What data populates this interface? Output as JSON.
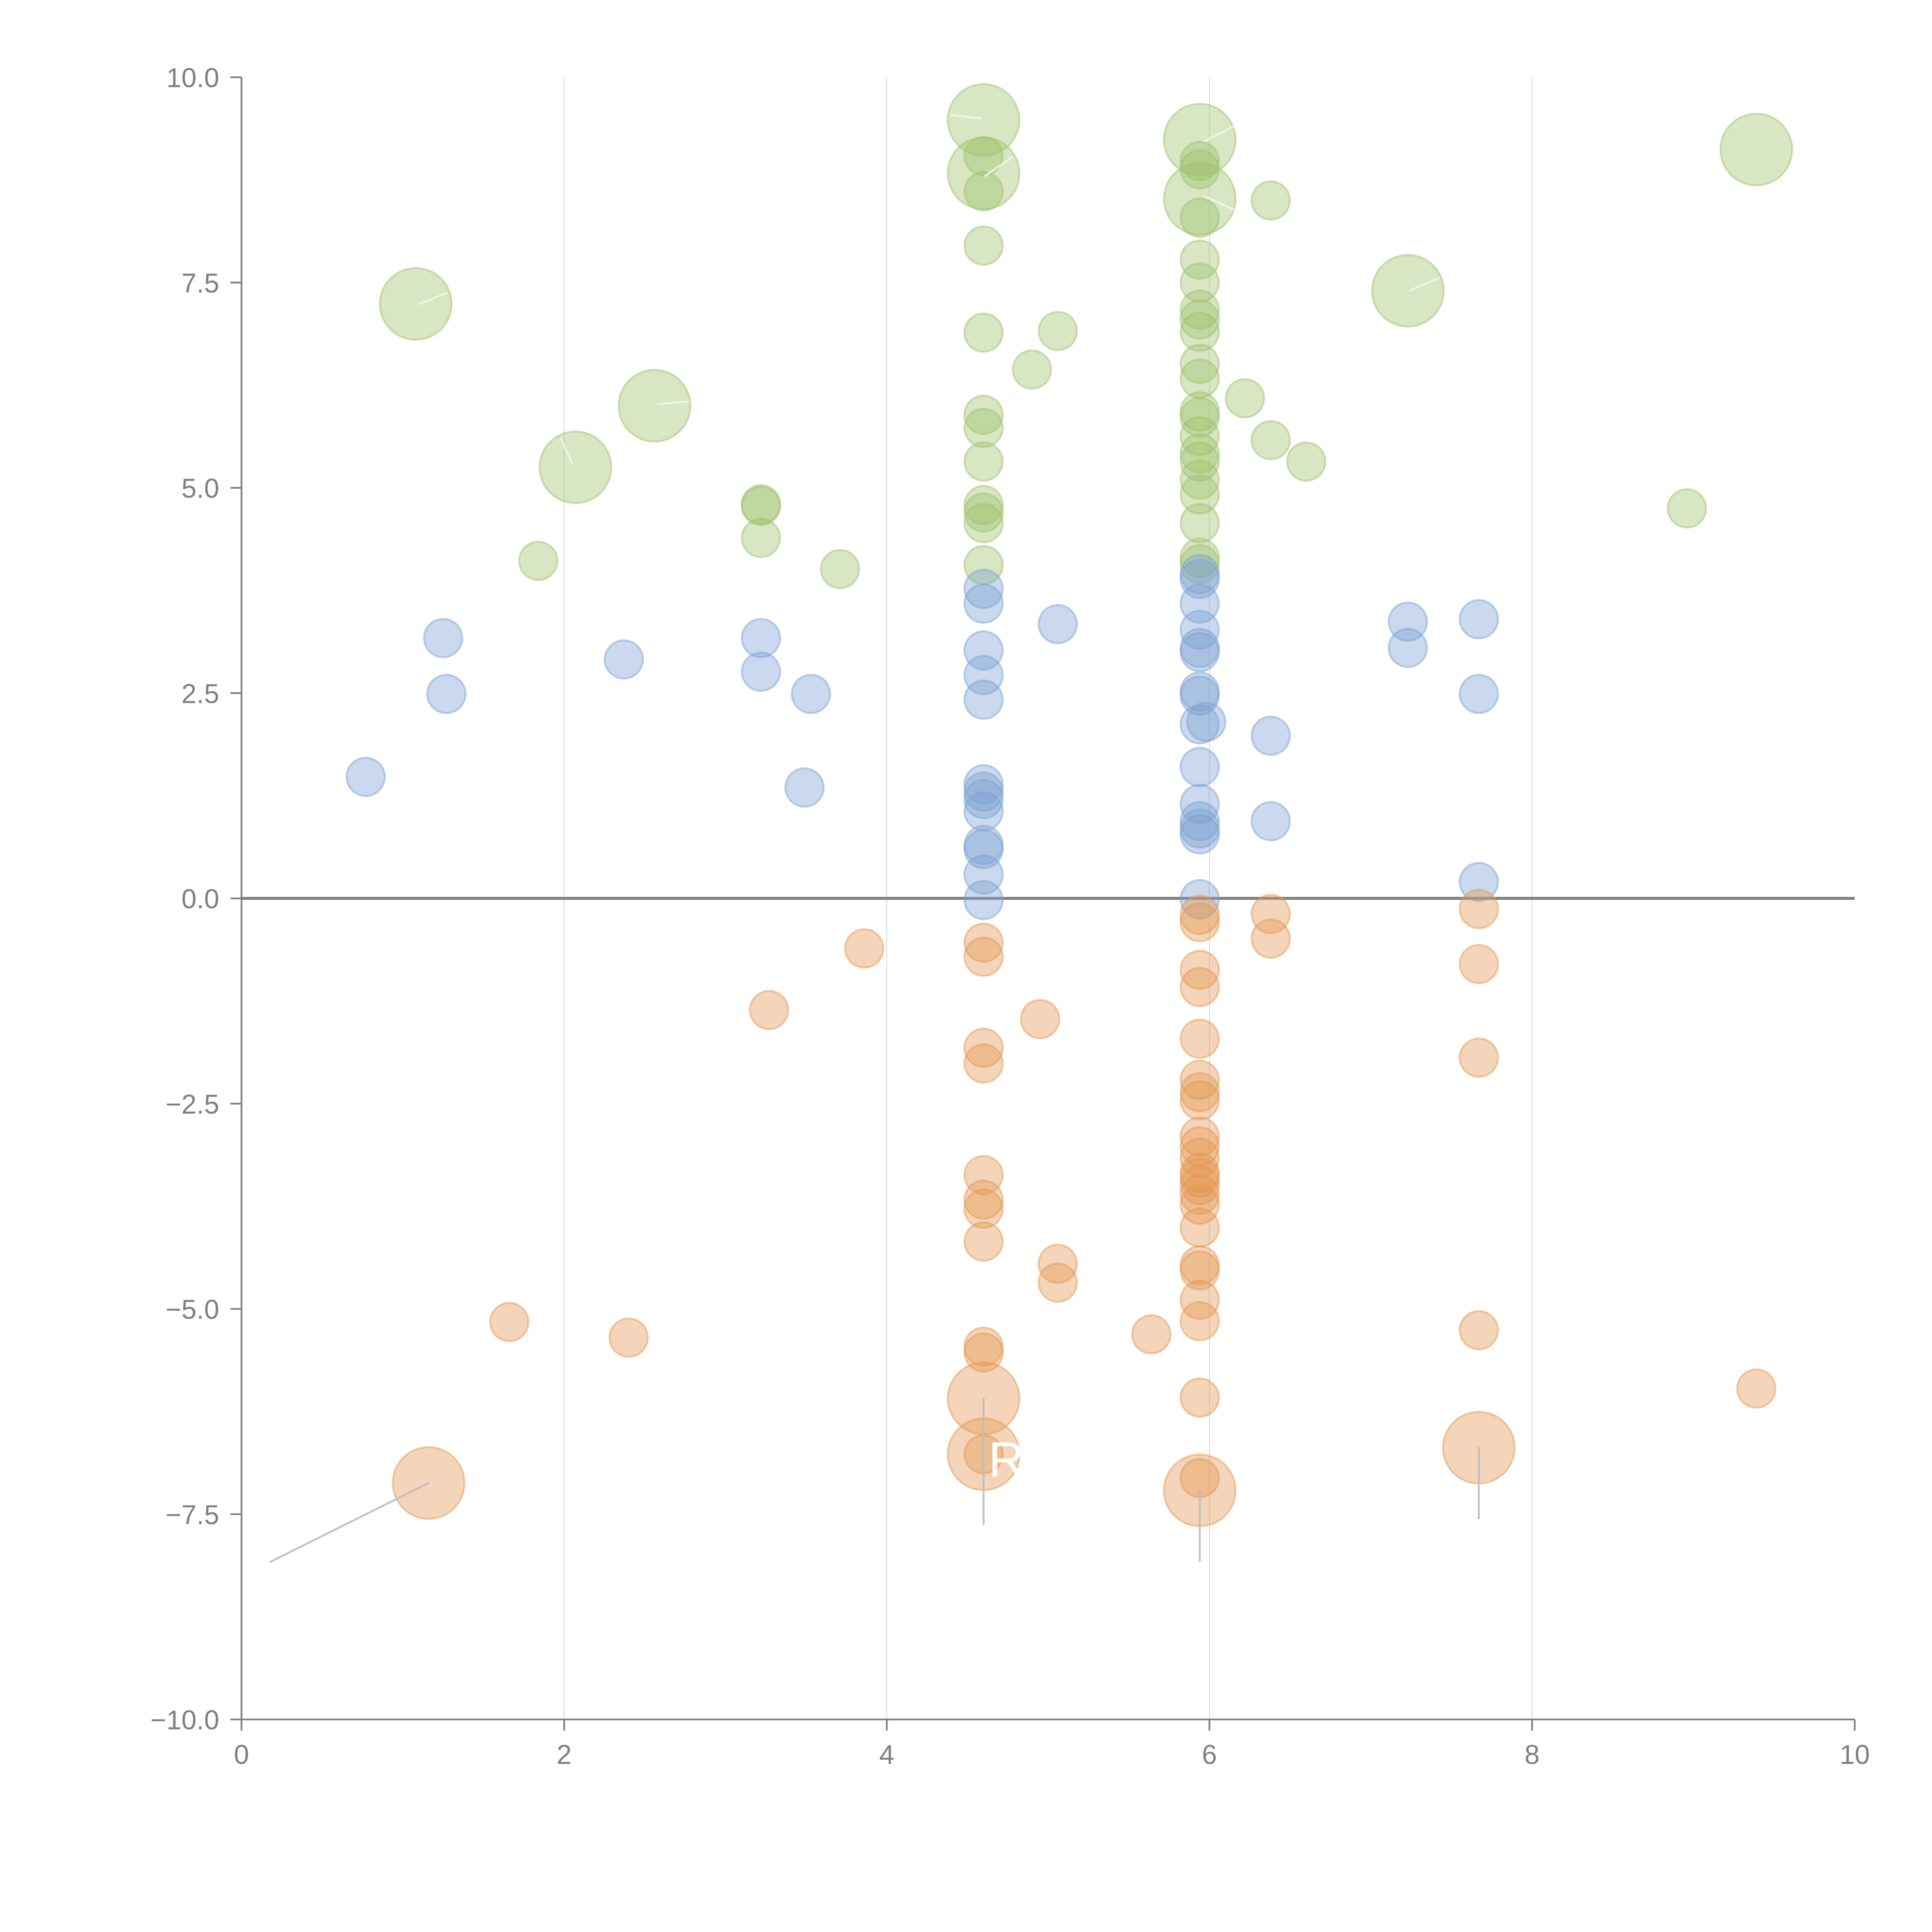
{
  "chart_data": {
    "type": "scatter",
    "subtype": "bubble",
    "title": "",
    "xlabel": "",
    "ylabel": "",
    "xlim": [
      0,
      10
    ],
    "ylim": [
      -10,
      10
    ],
    "x_ticks": [
      "0",
      "2",
      "4",
      "6",
      "8",
      "10"
    ],
    "y_ticks": [
      "−10.0",
      "−7.5",
      "−5.0",
      "−2.5",
      "0.0",
      "2.5",
      "5.0",
      "7.5",
      "10.0"
    ],
    "x_tick_values": [
      0,
      2,
      4,
      6,
      8,
      10
    ],
    "y_tick_values": [
      -10,
      -7.5,
      -5,
      -2.5,
      0,
      2.5,
      5,
      7.5,
      10
    ],
    "vertical_grid": true,
    "horizontal_grid": false,
    "reference_line_y": 0,
    "legend": "none",
    "size_note": "relative bubble size: 1 = small, 3.5 = large",
    "series": [
      {
        "name": "green",
        "color": "#9dc06a",
        "points": [
          [
            1.08,
            7.24,
            3.5
          ],
          [
            2.07,
            5.25,
            3.5
          ],
          [
            2.56,
            6.0,
            3.5
          ],
          [
            1.84,
            4.11,
            1
          ],
          [
            3.22,
            4.8,
            1
          ],
          [
            3.22,
            4.78,
            1
          ],
          [
            3.22,
            4.39,
            1
          ],
          [
            3.71,
            4.01,
            1
          ],
          [
            4.6,
            9.48,
            3.5
          ],
          [
            4.6,
            8.83,
            3.5
          ],
          [
            4.6,
            9.04,
            1
          ],
          [
            4.6,
            8.61,
            1
          ],
          [
            4.6,
            7.95,
            1
          ],
          [
            4.6,
            6.89,
            1
          ],
          [
            4.6,
            5.89,
            1
          ],
          [
            4.6,
            5.73,
            1
          ],
          [
            4.6,
            5.32,
            1
          ],
          [
            4.6,
            4.79,
            1
          ],
          [
            4.6,
            4.7,
            1
          ],
          [
            4.6,
            4.57,
            1
          ],
          [
            4.6,
            4.06,
            1
          ],
          [
            5.06,
            6.91,
            1
          ],
          [
            4.9,
            6.44,
            1
          ],
          [
            5.94,
            9.24,
            3.5
          ],
          [
            5.94,
            8.52,
            3.5
          ],
          [
            5.94,
            8.98,
            1
          ],
          [
            5.94,
            8.88,
            1
          ],
          [
            5.94,
            8.29,
            1
          ],
          [
            5.94,
            7.78,
            1
          ],
          [
            5.94,
            7.5,
            1
          ],
          [
            5.94,
            7.17,
            1
          ],
          [
            5.94,
            7.05,
            1
          ],
          [
            5.94,
            6.9,
            1
          ],
          [
            5.94,
            6.51,
            1
          ],
          [
            5.94,
            6.33,
            1
          ],
          [
            5.94,
            5.93,
            1
          ],
          [
            5.94,
            5.86,
            1
          ],
          [
            5.94,
            5.63,
            1
          ],
          [
            5.94,
            5.42,
            1
          ],
          [
            5.94,
            5.32,
            1
          ],
          [
            5.94,
            5.1,
            1
          ],
          [
            5.94,
            4.92,
            1
          ],
          [
            5.94,
            4.57,
            1
          ],
          [
            5.94,
            4.15,
            1
          ],
          [
            5.94,
            4.07,
            1
          ],
          [
            6.38,
            8.5,
            1
          ],
          [
            6.22,
            6.09,
            1
          ],
          [
            6.38,
            5.58,
            1
          ],
          [
            6.6,
            5.32,
            1
          ],
          [
            7.23,
            7.4,
            3.5
          ],
          [
            9.39,
            9.12,
            3.5
          ],
          [
            8.96,
            4.75,
            1
          ]
        ]
      },
      {
        "name": "blue",
        "color": "#7aa0d2",
        "points": [
          [
            0.77,
            1.48,
            1
          ],
          [
            1.25,
            3.17,
            1
          ],
          [
            1.27,
            2.49,
            1
          ],
          [
            2.37,
            2.91,
            1
          ],
          [
            3.22,
            3.17,
            1
          ],
          [
            3.22,
            2.76,
            1
          ],
          [
            3.53,
            2.49,
            1
          ],
          [
            3.49,
            1.35,
            1
          ],
          [
            4.6,
            3.77,
            1
          ],
          [
            4.6,
            3.59,
            1
          ],
          [
            4.6,
            3.02,
            1
          ],
          [
            4.6,
            2.72,
            1
          ],
          [
            4.6,
            2.42,
            1
          ],
          [
            4.6,
            1.39,
            1
          ],
          [
            4.6,
            1.3,
            1
          ],
          [
            4.6,
            1.21,
            1
          ],
          [
            4.6,
            1.06,
            1
          ],
          [
            4.6,
            0.65,
            1
          ],
          [
            4.6,
            0.6,
            1
          ],
          [
            4.6,
            0.29,
            1
          ],
          [
            4.6,
            -0.02,
            1
          ],
          [
            5.06,
            3.34,
            1
          ],
          [
            5.94,
            3.95,
            1
          ],
          [
            5.94,
            3.89,
            1
          ],
          [
            5.94,
            3.59,
            1
          ],
          [
            5.94,
            3.27,
            1
          ],
          [
            5.94,
            3.05,
            1
          ],
          [
            5.94,
            3.0,
            1
          ],
          [
            5.94,
            2.52,
            1
          ],
          [
            5.94,
            2.47,
            1
          ],
          [
            5.94,
            2.12,
            1
          ],
          [
            5.98,
            2.15,
            1
          ],
          [
            5.94,
            1.6,
            1
          ],
          [
            5.94,
            1.15,
            1
          ],
          [
            5.94,
            0.94,
            1
          ],
          [
            5.94,
            0.85,
            1
          ],
          [
            5.94,
            0.78,
            1
          ],
          [
            5.94,
            -0.01,
            1
          ],
          [
            6.38,
            1.98,
            1
          ],
          [
            6.38,
            0.94,
            1
          ],
          [
            7.23,
            3.37,
            1
          ],
          [
            7.23,
            3.05,
            1
          ],
          [
            7.67,
            3.4,
            1
          ],
          [
            7.67,
            2.49,
            1
          ],
          [
            7.67,
            0.2,
            1
          ]
        ]
      },
      {
        "name": "orange",
        "color": "#e39650",
        "points": [
          [
            1.66,
            -5.16,
            1
          ],
          [
            2.4,
            -5.35,
            1
          ],
          [
            3.27,
            -1.36,
            1
          ],
          [
            3.86,
            -0.61,
            1
          ],
          [
            4.95,
            -1.47,
            1
          ],
          [
            1.16,
            -7.12,
            3.5
          ],
          [
            4.6,
            -0.54,
            1
          ],
          [
            4.6,
            -0.71,
            1
          ],
          [
            4.6,
            -1.82,
            1
          ],
          [
            4.6,
            -2.01,
            1
          ],
          [
            4.6,
            -3.37,
            1
          ],
          [
            4.6,
            -3.67,
            1
          ],
          [
            4.6,
            -3.78,
            1
          ],
          [
            4.6,
            -4.18,
            1
          ],
          [
            4.6,
            -5.46,
            1
          ],
          [
            4.6,
            -5.53,
            1
          ],
          [
            4.6,
            -6.09,
            3.5
          ],
          [
            4.6,
            -6.77,
            3.5
          ],
          [
            4.6,
            -6.77,
            1
          ],
          [
            5.06,
            -4.45,
            1
          ],
          [
            5.06,
            -4.68,
            1
          ],
          [
            5.64,
            -5.31,
            1
          ],
          [
            5.94,
            -0.2,
            1
          ],
          [
            5.94,
            -0.29,
            1
          ],
          [
            5.94,
            -0.87,
            1
          ],
          [
            5.94,
            -1.08,
            1
          ],
          [
            5.94,
            -1.71,
            1
          ],
          [
            5.94,
            -2.21,
            1
          ],
          [
            5.94,
            -2.36,
            1
          ],
          [
            5.94,
            -2.46,
            1
          ],
          [
            5.94,
            -2.9,
            1
          ],
          [
            5.94,
            -3.02,
            1
          ],
          [
            5.94,
            -3.16,
            1
          ],
          [
            5.94,
            -3.34,
            1
          ],
          [
            5.94,
            -3.4,
            1
          ],
          [
            5.94,
            -3.49,
            1
          ],
          [
            5.94,
            -3.61,
            1
          ],
          [
            5.94,
            -3.73,
            1
          ],
          [
            5.94,
            -4.01,
            1
          ],
          [
            5.94,
            -4.47,
            1
          ],
          [
            5.94,
            -4.53,
            1
          ],
          [
            5.94,
            -4.89,
            1
          ],
          [
            5.94,
            -5.15,
            1
          ],
          [
            5.94,
            -6.08,
            1
          ],
          [
            5.94,
            -7.06,
            1
          ],
          [
            5.94,
            -7.21,
            3.5
          ],
          [
            6.38,
            -0.19,
            1
          ],
          [
            6.38,
            -0.49,
            1
          ],
          [
            7.67,
            -0.13,
            1
          ],
          [
            7.67,
            -0.8,
            1
          ],
          [
            7.67,
            -1.94,
            1
          ],
          [
            7.67,
            -5.26,
            1
          ],
          [
            7.67,
            -6.69,
            3.5
          ],
          [
            9.39,
            -5.97,
            1
          ]
        ]
      }
    ],
    "leader_lines": [
      {
        "from": [
          1.16,
          -7.12
        ],
        "to": [
          0.18,
          -8.08
        ],
        "color": "#bdbdbd"
      },
      {
        "from": [
          4.6,
          -6.09
        ],
        "to": [
          4.6,
          -7.62
        ],
        "color": "#bdbdbd"
      },
      {
        "from": [
          5.94,
          -7.21
        ],
        "to": [
          5.94,
          -8.07
        ],
        "color": "#bdbdbd"
      },
      {
        "from": [
          7.67,
          -6.69
        ],
        "to": [
          7.67,
          -7.55
        ],
        "color": "#bdbdbd"
      },
      {
        "from": [
          1.1,
          7.24
        ],
        "to": [
          1.27,
          7.37
        ],
        "color": "#f2f6ea"
      },
      {
        "from": [
          2.05,
          5.3
        ],
        "to": [
          1.98,
          5.6
        ],
        "color": "#f2f6ea"
      },
      {
        "from": [
          2.58,
          6.02
        ],
        "to": [
          2.77,
          6.05
        ],
        "color": "#f2f6ea"
      },
      {
        "from": [
          4.58,
          9.5
        ],
        "to": [
          4.4,
          9.54
        ],
        "color": "#f2f6ea"
      },
      {
        "from": [
          4.61,
          8.8
        ],
        "to": [
          4.78,
          9.03
        ],
        "color": "#f2f6ea"
      },
      {
        "from": [
          5.97,
          9.22
        ],
        "to": [
          6.15,
          9.4
        ],
        "color": "#f2f6ea"
      },
      {
        "from": [
          5.97,
          8.55
        ],
        "to": [
          6.16,
          8.38
        ],
        "color": "#f2f6ea"
      },
      {
        "from": [
          7.24,
          7.4
        ],
        "to": [
          7.42,
          7.55
        ],
        "color": "#f2f6ea"
      }
    ],
    "annotations": [
      {
        "text": "R",
        "x": 4.63,
        "y": -6.83
      }
    ]
  }
}
